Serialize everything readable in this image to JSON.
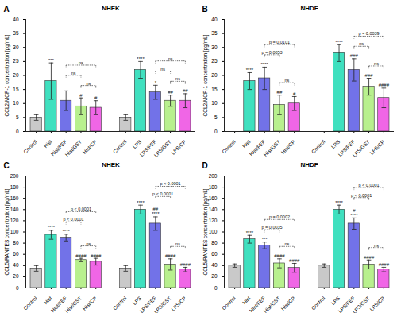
{
  "chart_data": [
    {
      "type": "bar",
      "panel_label": "A",
      "title": "NHEK",
      "y_label": "CCL2/MCP-1 concentration [pg/mL]",
      "categories": [
        "Control",
        "Hist",
        "Hist/FEF",
        "Hist/GST",
        "Hist/CP",
        "Control",
        "LPS",
        "LPS/FEF",
        "LPS/GST",
        "LPS/CP"
      ],
      "values": [
        5,
        18,
        11,
        9,
        8.5,
        5,
        22,
        14,
        11,
        11
      ],
      "errors": [
        1,
        6.5,
        3.5,
        3,
        2.5,
        1,
        3,
        2.5,
        2,
        2.5
      ],
      "annotations": [
        null,
        "***",
        null,
        "#",
        "#",
        null,
        "****",
        "*",
        "##",
        "##"
      ],
      "colors": [
        "#c9c9c9",
        "#3fe0bf",
        "#7272e8",
        "#b8f08e",
        "#f066e6",
        "#c9c9c9",
        "#3fe0bf",
        "#7272e8",
        "#b8f08e",
        "#f066e6"
      ],
      "brackets": [
        {
          "from": "Hist/GST",
          "to": "Hist/CP",
          "label": "ns"
        },
        {
          "from": "Hist/FEF",
          "to": "Hist/GST",
          "label": "ns"
        },
        {
          "from": "Hist/FEF",
          "to": "Hist/CP",
          "label": "ns"
        },
        {
          "from": "LPS/GST",
          "to": "LPS/CP",
          "label": "ns"
        },
        {
          "from": "LPS/FEF",
          "to": "LPS/GST",
          "label": "ns"
        },
        {
          "from": "LPS/FEF",
          "to": "LPS/CP",
          "label": "ns"
        }
      ],
      "ylim": [
        0,
        40
      ],
      "yticks": [
        0,
        5,
        10,
        15,
        20,
        25,
        30,
        35,
        40
      ]
    },
    {
      "type": "bar",
      "panel_label": "B",
      "title": "NHDF",
      "y_label": "CCL2/MCP-1 concentration [pg/mL]",
      "categories": [
        "Control",
        "Hist",
        "Hist/FEF",
        "Hist/GST",
        "Hist/CP",
        "Control",
        "LPS",
        "LPS/FEF",
        "LPS/GST",
        "LPS/CP"
      ],
      "values": [
        null,
        18,
        19,
        9.5,
        10,
        null,
        28,
        22,
        16,
        12
      ],
      "errors": [
        null,
        3,
        4,
        3.5,
        2.5,
        null,
        3,
        4,
        3,
        3.5
      ],
      "annotations": [
        null,
        "****",
        "****",
        "##",
        "#",
        null,
        "****",
        "###",
        "###",
        "####"
      ],
      "colors": [
        "#c9c9c9",
        "#3fe0bf",
        "#7272e8",
        "#b8f08e",
        "#f066e6",
        "#c9c9c9",
        "#3fe0bf",
        "#7272e8",
        "#b8f08e",
        "#f066e6"
      ],
      "brackets": [
        {
          "from": "Hist/GST",
          "to": "Hist/CP",
          "label": "ns"
        },
        {
          "from": "Hist/FEF",
          "to": "Hist/GST",
          "label": "p = 0.0053"
        },
        {
          "from": "Hist/FEF",
          "to": "Hist/CP",
          "label": "p = 0.0101"
        },
        {
          "from": "LPS/GST",
          "to": "LPS/CP",
          "label": "ns"
        },
        {
          "from": "LPS/FEF",
          "to": "LPS/GST",
          "label": "ns"
        },
        {
          "from": "LPS/FEF",
          "to": "LPS/CP",
          "label": "p = 0.0039"
        }
      ],
      "ylim": [
        0,
        40
      ],
      "yticks": [
        0,
        5,
        10,
        15,
        20,
        25,
        30,
        35,
        40
      ]
    },
    {
      "type": "bar",
      "panel_label": "C",
      "title": "NHEK",
      "y_label": "CCL5/RANTES concentration [pg/mL]",
      "categories": [
        "Control",
        "Hist",
        "Hist/FEF",
        "Hist/GST",
        "Hist/CP",
        "Control",
        "LPS",
        "LPS/FEF",
        "LPS/GST",
        "LPS/CP"
      ],
      "values": [
        35,
        95,
        90,
        50,
        47,
        35,
        140,
        115,
        42,
        33
      ],
      "errors": [
        5,
        8,
        6,
        3,
        6,
        5,
        8,
        12,
        10,
        4
      ],
      "annotations": [
        null,
        "****",
        "****",
        "####",
        "####",
        null,
        "****",
        "##\n****",
        "####",
        "####"
      ],
      "colors": [
        "#c9c9c9",
        "#3fe0bf",
        "#7272e8",
        "#b8f08e",
        "#f066e6",
        "#c9c9c9",
        "#3fe0bf",
        "#7272e8",
        "#b8f08e",
        "#f066e6"
      ],
      "brackets": [
        {
          "from": "Hist/GST",
          "to": "Hist/CP",
          "label": "ns"
        },
        {
          "from": "Hist/FEF",
          "to": "Hist/GST",
          "label": "p < 0.0001"
        },
        {
          "from": "Hist/FEF",
          "to": "Hist/CP",
          "label": "p < 0.0001"
        },
        {
          "from": "LPS/GST",
          "to": "LPS/CP",
          "label": "ns"
        },
        {
          "from": "LPS/FEF",
          "to": "LPS/GST",
          "label": "p < 0.0001"
        },
        {
          "from": "LPS/FEF",
          "to": "LPS/CP",
          "label": "p < 0.0001"
        }
      ],
      "ylim": [
        0,
        200
      ],
      "yticks": [
        0,
        20,
        40,
        60,
        80,
        100,
        120,
        140,
        160,
        180,
        200
      ]
    },
    {
      "type": "bar",
      "panel_label": "D",
      "title": "NHDF",
      "y_label": "CCL5/RANTES concentration [pg/mL]",
      "categories": [
        "Control",
        "Hist",
        "Hist/FEF",
        "Hist/GST",
        "Hist/CP",
        "Control",
        "LPS",
        "LPS/FEF",
        "LPS/GST",
        "LPS/CP"
      ],
      "values": [
        40,
        87,
        76,
        44,
        36,
        40,
        140,
        115,
        42,
        33
      ],
      "errors": [
        3,
        7,
        6,
        8,
        8,
        3,
        8,
        10,
        8,
        4
      ],
      "annotations": [
        null,
        "****",
        "***",
        "####",
        "####",
        null,
        "****",
        "#\n****",
        "####",
        "####"
      ],
      "colors": [
        "#c9c9c9",
        "#3fe0bf",
        "#7272e8",
        "#b8f08e",
        "#f066e6",
        "#c9c9c9",
        "#3fe0bf",
        "#7272e8",
        "#b8f08e",
        "#f066e6"
      ],
      "brackets": [
        {
          "from": "Hist/GST",
          "to": "Hist/CP",
          "label": "ns"
        },
        {
          "from": "Hist/FEF",
          "to": "Hist/GST",
          "label": "p = 0.0035"
        },
        {
          "from": "Hist/FEF",
          "to": "Hist/CP",
          "label": "p = 0.0002"
        },
        {
          "from": "LPS/GST",
          "to": "LPS/CP",
          "label": "ns"
        },
        {
          "from": "LPS/FEF",
          "to": "LPS/GST",
          "label": "p < 0.0001"
        },
        {
          "from": "LPS/FEF",
          "to": "LPS/CP",
          "label": "p < 0.0001"
        }
      ],
      "ylim": [
        0,
        200
      ],
      "yticks": [
        0,
        20,
        40,
        60,
        80,
        100,
        120,
        140,
        160,
        180,
        200
      ]
    }
  ]
}
